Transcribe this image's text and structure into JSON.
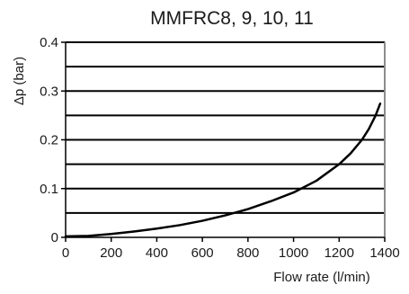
{
  "chart_data": {
    "type": "line",
    "title": "MMFRC8, 9, 10, 11",
    "xlabel": "Flow rate (l/min)",
    "ylabel": "Δp (bar)",
    "xlim": [
      0,
      1400
    ],
    "ylim": [
      0,
      0.4
    ],
    "x_ticks": [
      0,
      200,
      400,
      600,
      800,
      1000,
      1200,
      1400
    ],
    "x_tick_labels": [
      "0",
      "200",
      "400",
      "600",
      "800",
      "1000",
      "1200",
      "1400"
    ],
    "y_ticks": [
      0,
      0.1,
      0.2,
      0.3,
      0.4
    ],
    "y_tick_labels": [
      "0",
      "0.1",
      "0.2",
      "0.3",
      "0.4"
    ],
    "grid": {
      "horizontal": true,
      "vertical": false,
      "y_values": [
        0.05,
        0.1,
        0.15,
        0.2,
        0.25,
        0.3,
        0.35,
        0.4
      ]
    },
    "colors": {
      "line": "#000000",
      "grid": "#000000",
      "right_frame": "#8c8c8c",
      "text": "#1a1a1a"
    },
    "series": [
      {
        "x": [
          0,
          100,
          200,
          300,
          400,
          500,
          600,
          700,
          800,
          900,
          1000,
          1100,
          1200,
          1250,
          1300,
          1330,
          1360,
          1380
        ],
        "y": [
          0.002,
          0.003,
          0.007,
          0.012,
          0.018,
          0.025,
          0.034,
          0.045,
          0.058,
          0.074,
          0.092,
          0.116,
          0.15,
          0.172,
          0.2,
          0.222,
          0.25,
          0.274
        ]
      }
    ]
  }
}
